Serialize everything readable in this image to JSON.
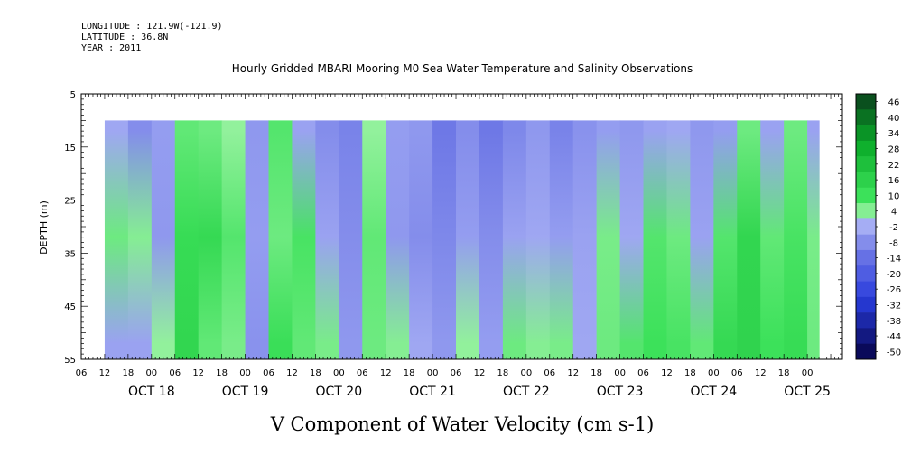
{
  "header": {
    "longitude": "LONGITUDE : 121.9W(-121.9)",
    "latitude": "LATITUDE : 36.8N",
    "year": "YEAR : 2011"
  },
  "chart_data": {
    "type": "heatmap",
    "title": "Hourly Gridded MBARI Mooring M0 Sea Water Temperature and Salinity Observations",
    "xlabel": "V Component of Water Velocity (cm s-1)",
    "ylabel": "DEPTH (m)",
    "x_range": [
      "2011-10-17T06:00",
      "2011-10-25T09:00"
    ],
    "data_x_range": [
      "2011-10-17T12:00",
      "2011-10-25T03:00"
    ],
    "y_range": [
      5,
      55
    ],
    "y_reversed": true,
    "data_depth_range": [
      10,
      55
    ],
    "y_ticks": [
      5,
      15,
      25,
      35,
      45,
      55
    ],
    "x_hour_ticks": [
      "06",
      "12",
      "18",
      "00",
      "06",
      "12",
      "18",
      "00",
      "06",
      "12",
      "18",
      "00",
      "06",
      "12",
      "18",
      "00",
      "06",
      "12",
      "18",
      "00",
      "06",
      "12",
      "18",
      "00",
      "06",
      "12",
      "18",
      "00",
      "06",
      "12",
      "18",
      "00"
    ],
    "x_date_labels": [
      "OCT 18",
      "OCT 19",
      "OCT 20",
      "OCT 21",
      "OCT 22",
      "OCT 23",
      "OCT 24",
      "OCT 25"
    ],
    "colorbar": {
      "ticks": [
        "46",
        "40",
        "34",
        "28",
        "22",
        "16",
        "10",
        "4",
        "-2",
        "-8",
        "-14",
        "-20",
        "-26",
        "-32",
        "-38",
        "-44",
        "-50"
      ],
      "range": [
        -50,
        46
      ]
    },
    "bands": [
      {
        "start": "2011-10-17T12:00",
        "end": "2011-10-17T18:00",
        "v": [
          -3,
          6,
          -4
        ]
      },
      {
        "start": "2011-10-17T18:00",
        "end": "2011-10-18T00:00",
        "v": [
          -8,
          4,
          -4
        ]
      },
      {
        "start": "2011-10-18T00:00",
        "end": "2011-10-18T06:00",
        "v": [
          -5,
          -6,
          3
        ]
      },
      {
        "start": "2011-10-18T06:00",
        "end": "2011-10-18T12:00",
        "v": [
          7,
          12,
          14
        ]
      },
      {
        "start": "2011-10-18T12:00",
        "end": "2011-10-18T18:00",
        "v": [
          6,
          13,
          7
        ]
      },
      {
        "start": "2011-10-18T18:00",
        "end": "2011-10-19T00:00",
        "v": [
          3,
          8,
          5
        ]
      },
      {
        "start": "2011-10-19T00:00",
        "end": "2011-10-19T06:00",
        "v": [
          -6,
          -5,
          -7
        ]
      },
      {
        "start": "2011-10-19T06:00",
        "end": "2011-10-19T12:00",
        "v": [
          8,
          6,
          11
        ]
      },
      {
        "start": "2011-10-19T12:00",
        "end": "2011-10-19T18:00",
        "v": [
          -4,
          9,
          7
        ]
      },
      {
        "start": "2011-10-19T18:00",
        "end": "2011-10-20T00:00",
        "v": [
          -8,
          -4,
          5
        ]
      },
      {
        "start": "2011-10-20T00:00",
        "end": "2011-10-20T06:00",
        "v": [
          -10,
          -8,
          -6
        ]
      },
      {
        "start": "2011-10-20T06:00",
        "end": "2011-10-20T12:00",
        "v": [
          3,
          7,
          6
        ]
      },
      {
        "start": "2011-10-20T12:00",
        "end": "2011-10-20T18:00",
        "v": [
          -5,
          -6,
          4
        ]
      },
      {
        "start": "2011-10-20T18:00",
        "end": "2011-10-21T00:00",
        "v": [
          -6,
          -8,
          -3
        ]
      },
      {
        "start": "2011-10-21T00:00",
        "end": "2011-10-21T06:00",
        "v": [
          -12,
          -9,
          -6
        ]
      },
      {
        "start": "2011-10-21T06:00",
        "end": "2011-10-21T12:00",
        "v": [
          -8,
          -5,
          3
        ]
      },
      {
        "start": "2011-10-21T12:00",
        "end": "2011-10-21T18:00",
        "v": [
          -12,
          -8,
          -5
        ]
      },
      {
        "start": "2011-10-21T18:00",
        "end": "2011-10-22T00:00",
        "v": [
          -9,
          -4,
          6
        ]
      },
      {
        "start": "2011-10-22T00:00",
        "end": "2011-10-22T06:00",
        "v": [
          -6,
          -3,
          4
        ]
      },
      {
        "start": "2011-10-22T06:00",
        "end": "2011-10-22T12:00",
        "v": [
          -10,
          -5,
          5
        ]
      },
      {
        "start": "2011-10-22T12:00",
        "end": "2011-10-22T18:00",
        "v": [
          -7,
          -4,
          -3
        ]
      },
      {
        "start": "2011-10-22T18:00",
        "end": "2011-10-23T00:00",
        "v": [
          -5,
          5,
          6
        ]
      },
      {
        "start": "2011-10-23T00:00",
        "end": "2011-10-23T06:00",
        "v": [
          -6,
          -3,
          8
        ]
      },
      {
        "start": "2011-10-23T06:00",
        "end": "2011-10-23T12:00",
        "v": [
          -4,
          8,
          10
        ]
      },
      {
        "start": "2011-10-23T12:00",
        "end": "2011-10-23T18:00",
        "v": [
          -3,
          6,
          9
        ]
      },
      {
        "start": "2011-10-23T18:00",
        "end": "2011-10-24T00:00",
        "v": [
          -6,
          -4,
          7
        ]
      },
      {
        "start": "2011-10-24T00:00",
        "end": "2011-10-24T06:00",
        "v": [
          -5,
          8,
          13
        ]
      },
      {
        "start": "2011-10-24T06:00",
        "end": "2011-10-24T12:00",
        "v": [
          6,
          14,
          15
        ]
      },
      {
        "start": "2011-10-24T12:00",
        "end": "2011-10-24T18:00",
        "v": [
          -4,
          7,
          10
        ]
      },
      {
        "start": "2011-10-24T18:00",
        "end": "2011-10-25T00:00",
        "v": [
          6,
          9,
          12
        ]
      },
      {
        "start": "2011-10-25T00:00",
        "end": "2011-10-25T03:00",
        "v": [
          -4,
          5,
          6
        ]
      }
    ],
    "band_depths": [
      12,
      32,
      52
    ],
    "colors": {
      "low": "#1a1a8c",
      "mid_neg": "#8c96ef",
      "mid_pos": "#9ef2a8",
      "high": "#0a4d1a",
      "axis": "#000000"
    },
    "grid": false
  }
}
